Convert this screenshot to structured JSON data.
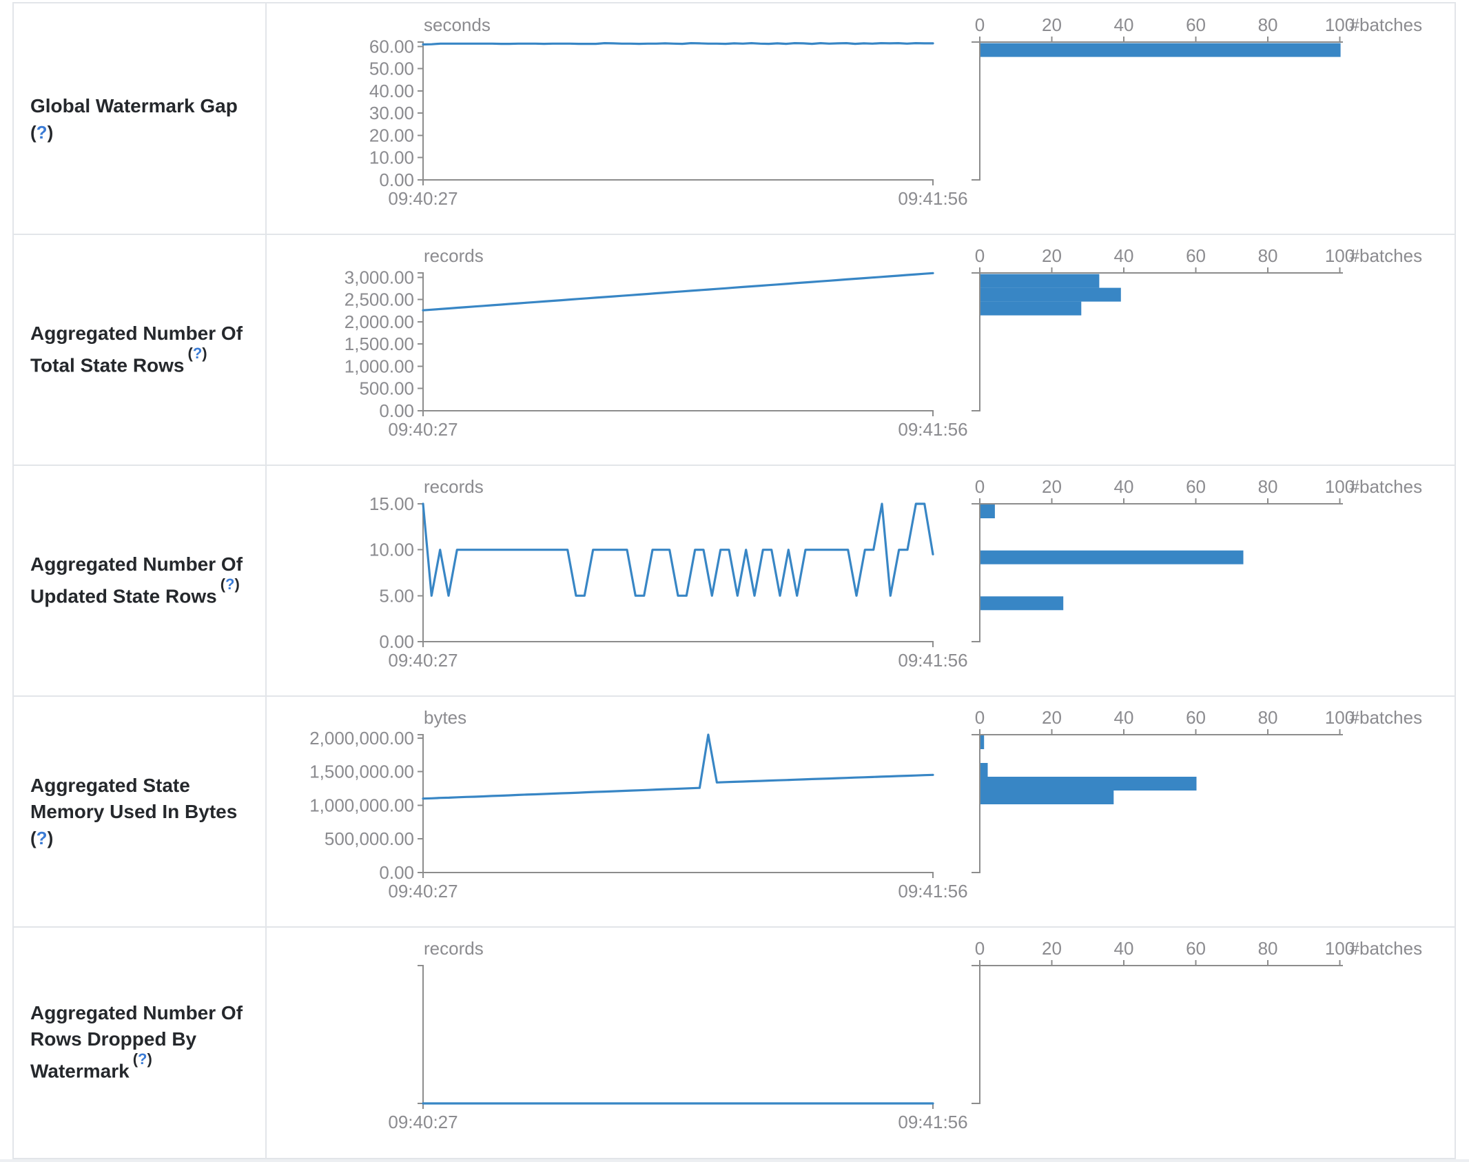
{
  "page": {
    "background": "#ffffff",
    "table_border_color": "#e2e5e9",
    "axis_line_color": "#8c8c8c",
    "axis_text_color": "#8b8b8f",
    "title_color": "#25282c",
    "help_link_color": "#3a7bd5",
    "chart_blue": "#3886c5"
  },
  "axis": {
    "x_start_label": "09:40:27",
    "x_end_label": "09:41:56",
    "batches_label": "#batches",
    "batch_ticks": [
      0,
      20,
      40,
      60,
      80,
      100
    ]
  },
  "help": {
    "open": "(",
    "q": "?",
    "close": ")"
  },
  "chart_data": [
    {
      "slug": "global-watermark-gap",
      "type": "line+histogram",
      "title_lines": [
        "Global Watermark Gap"
      ],
      "help_inline": false,
      "unit": "seconds",
      "y_max": 62,
      "y_ticks": [
        {
          "v": 60,
          "label": "60.00"
        },
        {
          "v": 50,
          "label": "50.00"
        },
        {
          "v": 40,
          "label": "40.00"
        },
        {
          "v": 30,
          "label": "30.00"
        },
        {
          "v": 20,
          "label": "20.00"
        },
        {
          "v": 10,
          "label": "10.00"
        },
        {
          "v": 0,
          "label": "0.00"
        }
      ],
      "x_labels": [
        "09:40:27",
        "09:41:56"
      ],
      "series": [
        60.9,
        61.0,
        61.3,
        61.3,
        61.3,
        61.3,
        61.3,
        61.3,
        61.3,
        61.2,
        61.2,
        61.3,
        61.3,
        61.3,
        61.2,
        61.3,
        61.3,
        61.3,
        61.2,
        61.2,
        61.2,
        61.5,
        61.4,
        61.3,
        61.3,
        61.2,
        61.3,
        61.3,
        61.4,
        61.3,
        61.2,
        61.5,
        61.4,
        61.3,
        61.3,
        61.2,
        61.4,
        61.3,
        61.5,
        61.3,
        61.2,
        61.4,
        61.2,
        61.5,
        61.4,
        61.2,
        61.5,
        61.3,
        61.4,
        61.5,
        61.2,
        61.4,
        61.3,
        61.5,
        61.4,
        61.5,
        61.3,
        61.5,
        61.4,
        61.4
      ],
      "histogram": {
        "unit": "#batches",
        "ticks": [
          0,
          20,
          40,
          60,
          80,
          100
        ],
        "bins": [
          {
            "count": 100,
            "at": 61.8
          }
        ]
      }
    },
    {
      "slug": "aggregated-total-state-rows",
      "type": "line+histogram",
      "title_lines": [
        "Aggregated Number Of",
        "Total State Rows"
      ],
      "help_inline": true,
      "unit": "records",
      "y_max": 3100,
      "y_ticks": [
        {
          "v": 3000,
          "label": "3,000.00"
        },
        {
          "v": 2500,
          "label": "2,500.00"
        },
        {
          "v": 2000,
          "label": "2,000.00"
        },
        {
          "v": 1500,
          "label": "1,500.00"
        },
        {
          "v": 1000,
          "label": "1,000.00"
        },
        {
          "v": 500,
          "label": "500.00"
        },
        {
          "v": 0,
          "label": "0.00"
        }
      ],
      "x_labels": [
        "09:40:27",
        "09:41:56"
      ],
      "series": [
        2260,
        2274,
        2288,
        2302,
        2317,
        2331,
        2345,
        2359,
        2373,
        2387,
        2402,
        2416,
        2430,
        2444,
        2458,
        2472,
        2486,
        2501,
        2515,
        2529,
        2543,
        2557,
        2571,
        2586,
        2600,
        2614,
        2628,
        2642,
        2656,
        2670,
        2685,
        2699,
        2713,
        2727,
        2741,
        2755,
        2770,
        2784,
        2798,
        2812,
        2826,
        2840,
        2854,
        2869,
        2883,
        2897,
        2911,
        2925,
        2939,
        2954,
        2968,
        2982,
        2996,
        3010,
        3024,
        3038,
        3053,
        3067,
        3081,
        3095
      ],
      "histogram": {
        "unit": "#batches",
        "ticks": [
          0,
          20,
          40,
          60,
          80,
          100
        ],
        "bins": [
          {
            "count": 33,
            "at": 3090
          },
          {
            "count": 39,
            "at": 2780
          },
          {
            "count": 28,
            "at": 2470
          }
        ]
      }
    },
    {
      "slug": "aggregated-updated-state-rows",
      "type": "line+histogram",
      "title_lines": [
        "Aggregated Number Of",
        "Updated State Rows"
      ],
      "help_inline": true,
      "unit": "records",
      "y_max": 15,
      "y_ticks": [
        {
          "v": 15,
          "label": "15.00"
        },
        {
          "v": 10,
          "label": "10.00"
        },
        {
          "v": 5,
          "label": "5.00"
        },
        {
          "v": 0,
          "label": "0.00"
        }
      ],
      "x_labels": [
        "09:40:27",
        "09:41:56"
      ],
      "series": [
        15,
        5,
        10,
        5,
        10,
        10,
        10,
        10,
        10,
        10,
        10,
        10,
        10,
        10,
        10,
        10,
        10,
        10,
        5,
        5,
        10,
        10,
        10,
        10,
        10,
        5,
        5,
        10,
        10,
        10,
        5,
        5,
        10,
        10,
        5,
        10,
        10,
        5,
        10,
        5,
        10,
        10,
        5,
        10,
        5,
        10,
        10,
        10,
        10,
        10,
        10,
        5,
        10,
        10,
        15,
        5,
        10,
        10,
        15,
        15,
        9.5
      ],
      "histogram": {
        "unit": "#batches",
        "ticks": [
          0,
          20,
          40,
          60,
          80,
          100
        ],
        "bins": [
          {
            "count": 4,
            "at": 15
          },
          {
            "count": 73,
            "at": 10
          },
          {
            "count": 23,
            "at": 5
          }
        ]
      }
    },
    {
      "slug": "aggregated-state-memory-used",
      "type": "line+histogram",
      "title_lines": [
        "Aggregated State",
        "Memory Used In Bytes"
      ],
      "help_inline": false,
      "unit": "bytes",
      "y_max": 2050000,
      "y_ticks": [
        {
          "v": 2000000,
          "label": "2,000,000.00"
        },
        {
          "v": 1500000,
          "label": "1,500,000.00"
        },
        {
          "v": 1000000,
          "label": "1,000,000.00"
        },
        {
          "v": 500000,
          "label": "500,000.00"
        },
        {
          "v": 0,
          "label": "0.00"
        }
      ],
      "x_labels": [
        "09:40:27",
        "09:41:56"
      ],
      "series": [
        1100000,
        1104000,
        1110000,
        1113000,
        1119000,
        1124000,
        1128000,
        1133000,
        1139000,
        1143000,
        1148000,
        1154000,
        1159000,
        1163000,
        1168000,
        1174000,
        1179000,
        1183000,
        1188000,
        1194000,
        1199000,
        1203000,
        1208000,
        1214000,
        1219000,
        1223000,
        1228000,
        1234000,
        1239000,
        1243000,
        1248000,
        1254000,
        1259000,
        2050000,
        1340000,
        1344500,
        1349000,
        1353500,
        1358000,
        1362500,
        1367000,
        1371500,
        1376000,
        1380500,
        1385000,
        1389500,
        1394000,
        1398500,
        1403000,
        1407500,
        1412000,
        1416500,
        1421000,
        1425500,
        1430000,
        1434500,
        1439000,
        1443500,
        1448000,
        1452500
      ],
      "histogram": {
        "unit": "#batches",
        "ticks": [
          0,
          20,
          40,
          60,
          80,
          100
        ],
        "bins": [
          {
            "count": 1,
            "at": 2050000
          },
          {
            "count": 2,
            "at": 1640000
          },
          {
            "count": 60,
            "at": 1435000
          },
          {
            "count": 37,
            "at": 1230000
          }
        ]
      }
    },
    {
      "slug": "aggregated-rows-dropped-by-watermark",
      "type": "line+histogram",
      "title_lines": [
        "Aggregated Number Of",
        "Rows Dropped By",
        "Watermark"
      ],
      "help_inline": true,
      "unit": "records",
      "y_max": 1,
      "y_ticks": [],
      "x_labels": [
        "09:40:27",
        "09:41:56"
      ],
      "series": [
        0,
        0
      ],
      "histogram": {
        "unit": "#batches",
        "ticks": [
          0,
          20,
          40,
          60,
          80,
          100
        ],
        "bins": []
      }
    }
  ]
}
